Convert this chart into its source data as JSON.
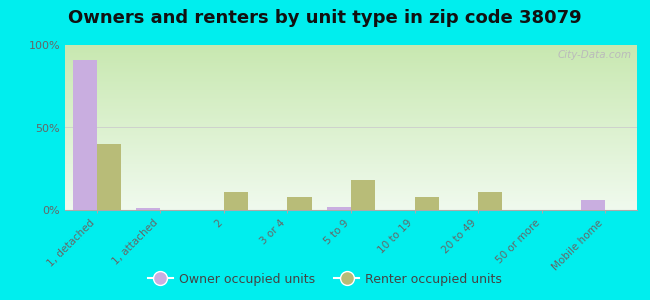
{
  "title": "Owners and renters by unit type in zip code 38079",
  "categories": [
    "1, detached",
    "1, attached",
    "2",
    "3 or 4",
    "5 to 9",
    "10 to 19",
    "20 to 49",
    "50 or more",
    "Mobile home"
  ],
  "owner_values": [
    91,
    1,
    0,
    0,
    2,
    0,
    0,
    0,
    6
  ],
  "renter_values": [
    40,
    0,
    11,
    8,
    18,
    8,
    11,
    0,
    0
  ],
  "owner_color": "#c9aee0",
  "renter_color": "#b8bc78",
  "background_color": "#00eeee",
  "grad_top": "#c8e8b0",
  "grad_bottom": "#f0faee",
  "ylim": [
    0,
    100
  ],
  "yticks": [
    0,
    50,
    100
  ],
  "ytick_labels": [
    "0%",
    "50%",
    "100%"
  ],
  "bar_width": 0.38,
  "title_fontsize": 13,
  "watermark": "City-Data.com",
  "legend_owner": "Owner occupied units",
  "legend_renter": "Renter occupied units"
}
